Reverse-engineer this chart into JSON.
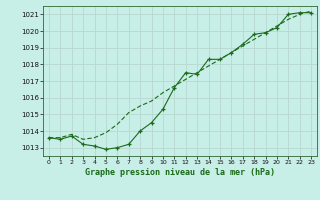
{
  "title": "Graphe pression niveau de la mer (hPa)",
  "bg_color": "#c8eee8",
  "grid_color": "#b8d8d0",
  "line_color": "#1a6b1a",
  "x_labels": [
    "0",
    "1",
    "2",
    "3",
    "4",
    "5",
    "6",
    "7",
    "8",
    "9",
    "10",
    "11",
    "12",
    "13",
    "14",
    "15",
    "16",
    "17",
    "18",
    "19",
    "20",
    "21",
    "22",
    "23"
  ],
  "ylim": [
    1012.5,
    1021.5
  ],
  "yticks": [
    1013,
    1014,
    1015,
    1016,
    1017,
    1018,
    1019,
    1020,
    1021
  ],
  "series1": [
    1013.6,
    1013.5,
    1013.7,
    1013.2,
    1013.1,
    1012.9,
    1013.0,
    1013.2,
    1014.0,
    1014.5,
    1015.3,
    1016.6,
    1017.5,
    1017.4,
    1018.3,
    1018.3,
    1018.7,
    1019.2,
    1019.8,
    1019.9,
    1020.2,
    1021.0,
    1021.1,
    1021.1
  ],
  "series2": [
    1013.6,
    1013.6,
    1013.8,
    1013.5,
    1013.6,
    1013.9,
    1014.4,
    1015.1,
    1015.5,
    1015.8,
    1016.3,
    1016.7,
    1017.1,
    1017.5,
    1017.9,
    1018.3,
    1018.7,
    1019.1,
    1019.5,
    1019.9,
    1020.3,
    1020.7,
    1021.0,
    1021.2
  ]
}
